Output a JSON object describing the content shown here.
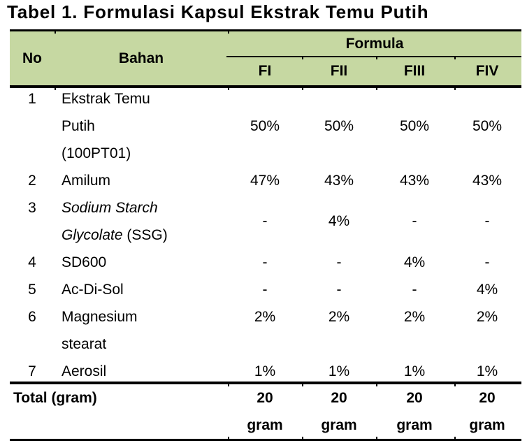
{
  "title": "Tabel 1. Formulasi Kapsul Ekstrak Temu Putih",
  "colors": {
    "header_bg": "#c6d8a2",
    "rule": "#000000",
    "text": "#000000",
    "background": "#ffffff"
  },
  "table": {
    "header": {
      "no_label": "No",
      "bahan_label": "Bahan",
      "formula_label": "Formula",
      "formula_columns": [
        "FI",
        "FII",
        "FIII",
        "FIV"
      ]
    },
    "rows": [
      {
        "no": "1",
        "name_segments": [
          {
            "text": "Ekstrak Temu\nPutih\n(100PT01)",
            "italic": false
          }
        ],
        "values": [
          "50%",
          "50%",
          "50%",
          "50%"
        ],
        "value_align": "middle"
      },
      {
        "no": "2",
        "name_segments": [
          {
            "text": "Amilum",
            "italic": false
          }
        ],
        "values": [
          "47%",
          "43%",
          "43%",
          "43%"
        ],
        "value_align": "middle"
      },
      {
        "no": "3",
        "name_segments": [
          {
            "text": "Sodium Starch\nGlycolate",
            "italic": true
          },
          {
            "text": " (SSG)",
            "italic": false
          }
        ],
        "values": [
          "-",
          "4%",
          "-",
          "-"
        ],
        "value_align": "middle"
      },
      {
        "no": "4",
        "name_segments": [
          {
            "text": "SD600",
            "italic": false
          }
        ],
        "values": [
          "-",
          "-",
          "4%",
          "-"
        ],
        "value_align": "middle"
      },
      {
        "no": "5",
        "name_segments": [
          {
            "text": "Ac-Di-Sol",
            "italic": false
          }
        ],
        "values": [
          "-",
          "-",
          "-",
          "4%"
        ],
        "value_align": "middle"
      },
      {
        "no": "6",
        "name_segments": [
          {
            "text": "Magnesium\nstearat",
            "italic": false
          }
        ],
        "values": [
          "2%",
          "2%",
          "2%",
          "2%"
        ],
        "value_align": "top"
      },
      {
        "no": "7",
        "name_segments": [
          {
            "text": "Aerosil",
            "italic": false
          }
        ],
        "values": [
          "1%",
          "1%",
          "1%",
          "1%"
        ],
        "value_align": "middle"
      }
    ],
    "total": {
      "label": "Total (gram)",
      "values": [
        "20\ngram",
        "20\ngram",
        "20\ngram",
        "20\ngram"
      ]
    }
  }
}
